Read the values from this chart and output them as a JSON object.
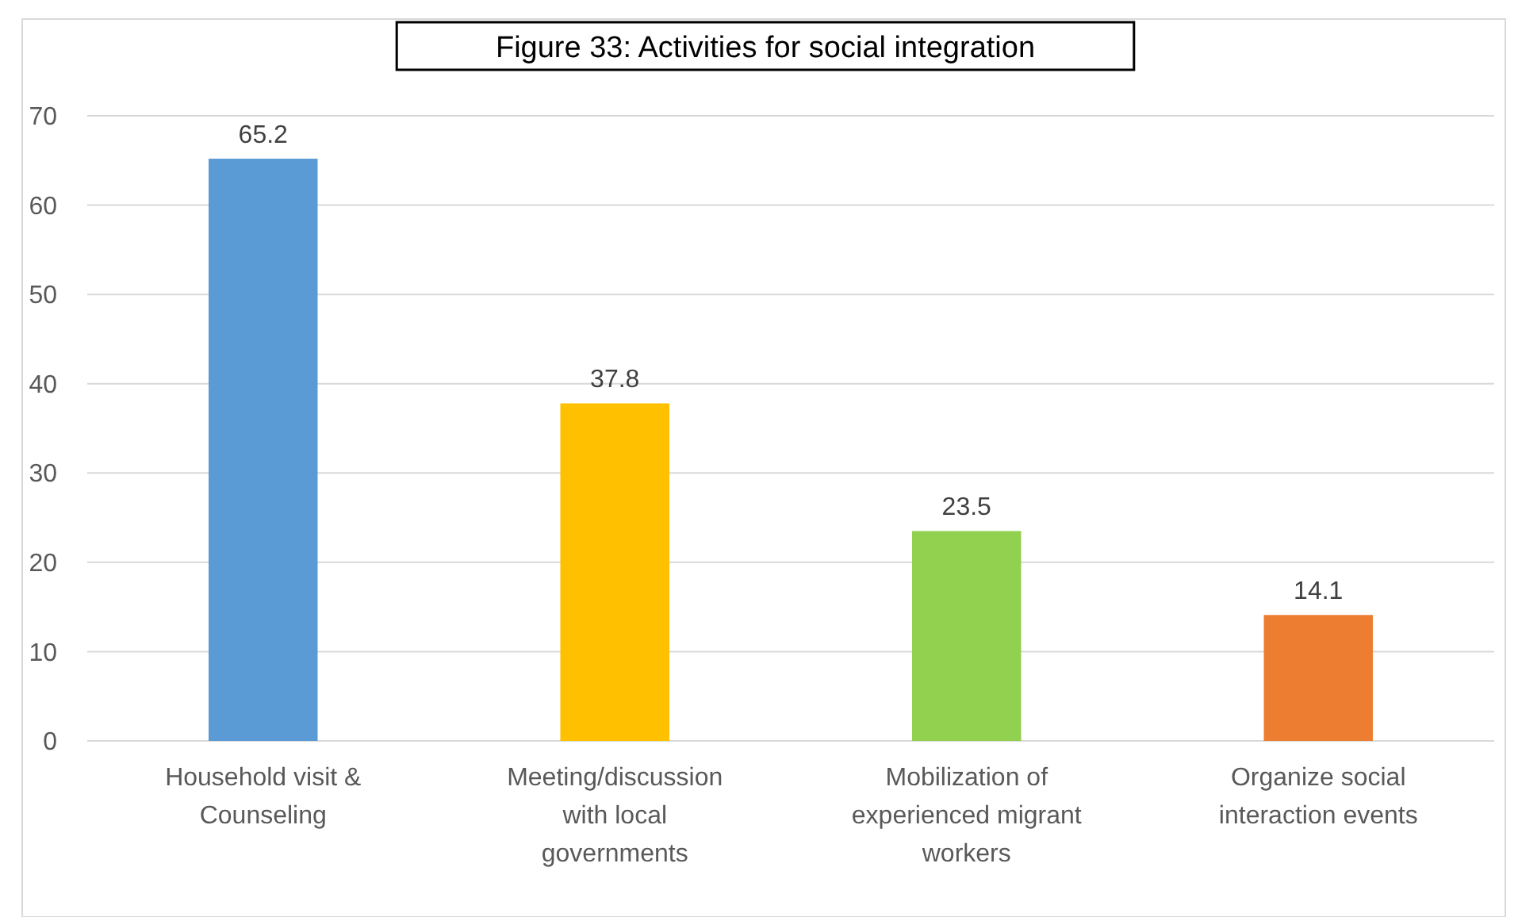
{
  "chart_data": {
    "type": "bar",
    "title": "Figure 33: Activities for social integration",
    "categories": [
      "Household visit & Counseling",
      "Meeting/discussion with local governments",
      "Mobilization of experienced migrant workers",
      "Organize social interaction events"
    ],
    "values": [
      65.2,
      37.8,
      23.5,
      14.1
    ],
    "colors": [
      "#5b9bd5",
      "#ffc000",
      "#92d050",
      "#ed7d31"
    ],
    "ylim": [
      0,
      70
    ],
    "yticks": [
      0,
      10,
      20,
      30,
      40,
      50,
      60,
      70
    ],
    "grid": "y",
    "data_labels": true
  }
}
